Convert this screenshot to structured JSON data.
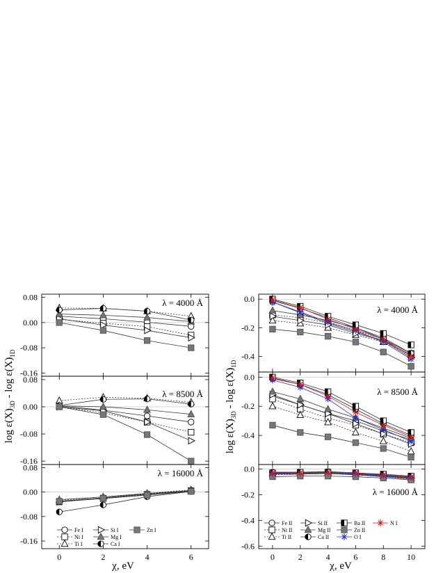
{
  "left_figure": {
    "ylabel": "log ε(X)",
    "ylabel_sub3d": "3D",
    "ylabel_mid": " - log ε(X)",
    "ylabel_sub1d": "1D",
    "xlabel": "χ, eV",
    "legend": [
      "Fe I",
      "Ni I",
      "Ti I",
      "Si I",
      "Mg I",
      "Ca I",
      "Zn I"
    ]
  },
  "right_figure": {
    "ylabel": "log ε(X)",
    "ylabel_sub3d": "3D",
    "ylabel_mid": " - log ε(X)",
    "ylabel_sub1d": "1D",
    "xlabel": "χ, eV",
    "legend": [
      "Fe II",
      "Ni II",
      "Ti II",
      "Si II",
      "Mg II",
      "Ca II",
      "Ba II",
      "Zn II",
      "O I",
      "N I"
    ]
  },
  "chart_data": [
    {
      "type": "line",
      "panel": "left-top",
      "annotation": "λ = 4000 Å",
      "x": [
        0,
        2,
        4,
        6
      ],
      "xlim": [
        -0.8,
        6.8
      ],
      "ylim": [
        -0.17,
        0.09
      ],
      "yticks": [
        0.08,
        0.0,
        -0.08,
        -0.16
      ],
      "ytick_labels": [
        "0.08",
        "0.00",
        "-0.08",
        "-0.16"
      ],
      "show_xticklabels": false,
      "series": [
        {
          "name": "Fe I",
          "marker": "circle",
          "dash": "solid",
          "values": [
            0.02,
            0.012,
            0.001,
            -0.012
          ]
        },
        {
          "name": "Ni I",
          "marker": "square",
          "dash": "dotted",
          "values": [
            0.01,
            -0.002,
            -0.013,
            -0.04
          ]
        },
        {
          "name": "Ti I",
          "marker": "triangle",
          "dash": "dotted",
          "values": [
            0.046,
            0.045,
            0.036,
            0.02
          ]
        },
        {
          "name": "Si I",
          "marker": "triangle-right",
          "dash": "solid",
          "values": [
            0.012,
            -0.008,
            -0.025,
            -0.048
          ]
        },
        {
          "name": "Mg I",
          "marker": "triangle-filled",
          "dash": "solid",
          "values": [
            0.027,
            0.023,
            0.016,
            0.003
          ]
        },
        {
          "name": "Ca I",
          "marker": "circle-half",
          "dash": "solid",
          "values": [
            0.04,
            0.045,
            0.036,
            0.008
          ]
        },
        {
          "name": "Zn I",
          "marker": "square-filled",
          "dash": "solid",
          "values": [
            0.0,
            -0.025,
            -0.057,
            -0.08
          ]
        }
      ]
    },
    {
      "type": "line",
      "panel": "left-middle",
      "annotation": "λ = 8500 Å",
      "x": [
        0,
        2,
        4,
        6
      ],
      "xlim": [
        -0.8,
        6.8
      ],
      "ylim": [
        -0.17,
        0.09
      ],
      "yticks": [
        0.08,
        0.0,
        -0.08,
        -0.16
      ],
      "ytick_labels": [
        "0.08",
        "0.00",
        "-0.08",
        "-0.16"
      ],
      "show_xticklabels": false,
      "series": [
        {
          "name": "Fe I",
          "marker": "circle",
          "dash": "solid",
          "values": [
            0.003,
            -0.01,
            -0.027,
            -0.045
          ]
        },
        {
          "name": "Ni I",
          "marker": "square",
          "dash": "dotted",
          "values": [
            0.0,
            -0.018,
            -0.045,
            -0.075
          ]
        },
        {
          "name": "Ti I",
          "marker": "triangle",
          "dash": "dotted",
          "values": [
            0.018,
            0.028,
            0.025,
            0.013
          ]
        },
        {
          "name": "Si I",
          "marker": "triangle-right",
          "dash": "solid",
          "values": [
            0.0,
            -0.012,
            -0.045,
            -0.1
          ]
        },
        {
          "name": "Mg I",
          "marker": "triangle-filled",
          "dash": "solid",
          "values": [
            0.003,
            0.0,
            -0.009,
            -0.022
          ]
        },
        {
          "name": "Ca I",
          "marker": "circle-half",
          "dash": "solid",
          "values": [
            0.004,
            0.022,
            0.023,
            0.008
          ]
        },
        {
          "name": "Zn I",
          "marker": "square-filled",
          "dash": "solid",
          "values": [
            0.0,
            -0.023,
            -0.082,
            -0.16
          ]
        }
      ]
    },
    {
      "type": "line",
      "panel": "left-bottom",
      "annotation": "λ = 16000 Å",
      "x": [
        0,
        2,
        4,
        6
      ],
      "xlim": [
        -0.8,
        6.8
      ],
      "ylim": [
        -0.185,
        0.09
      ],
      "yticks": [
        0.08,
        0.0,
        -0.08,
        -0.16
      ],
      "ytick_labels": [
        "0.08",
        "0.00",
        "-0.08",
        "-0.16"
      ],
      "xticks": [
        0,
        2,
        4,
        6
      ],
      "xtick_labels": [
        "0",
        "2",
        "4",
        "6"
      ],
      "show_xticklabels": true,
      "series": [
        {
          "name": "Fe I",
          "marker": "circle",
          "dash": "solid",
          "values": [
            -0.03,
            -0.019,
            -0.006,
            0.005
          ]
        },
        {
          "name": "Ni I",
          "marker": "square",
          "dash": "dotted",
          "values": [
            -0.032,
            -0.02,
            -0.008,
            0.004
          ]
        },
        {
          "name": "Ti I",
          "marker": "triangle",
          "dash": "dotted",
          "values": [
            -0.027,
            -0.016,
            -0.004,
            0.007
          ]
        },
        {
          "name": "Si I",
          "marker": "triangle-right",
          "dash": "solid",
          "values": [
            -0.032,
            -0.021,
            -0.009,
            0.003
          ]
        },
        {
          "name": "Mg I",
          "marker": "triangle-filled",
          "dash": "solid",
          "values": [
            -0.025,
            -0.016,
            -0.005,
            0.005
          ]
        },
        {
          "name": "Ca I",
          "marker": "circle-half",
          "dash": "solid",
          "values": [
            -0.065,
            -0.042,
            -0.015,
            0.002
          ]
        },
        {
          "name": "Zn I",
          "marker": "square-filled",
          "dash": "solid",
          "values": [
            -0.03,
            -0.021,
            -0.01,
            0.002
          ]
        }
      ]
    },
    {
      "type": "line",
      "panel": "right-top",
      "annotation": "λ = 4000 Å",
      "x": [
        0,
        2,
        4,
        6,
        8,
        10
      ],
      "xlim": [
        -1.0,
        11.0
      ],
      "ylim": [
        -0.51,
        0.035
      ],
      "yticks": [
        0.0,
        -0.2,
        -0.4
      ],
      "ytick_labels": [
        "0.0",
        "-0.2",
        "-0.4"
      ],
      "show_xticklabels": false,
      "series": [
        {
          "name": "Fe II",
          "marker": "circle",
          "dash": "solid",
          "values": [
            -0.02,
            -0.095,
            -0.17,
            -0.23,
            -0.29,
            -0.39
          ]
        },
        {
          "name": "Ni II",
          "marker": "square",
          "dash": "dotted",
          "values": [
            -0.11,
            -0.13,
            -0.165,
            -0.22,
            -0.28,
            -0.38
          ]
        },
        {
          "name": "Ti II",
          "marker": "triangle",
          "dash": "dotted",
          "values": [
            -0.15,
            -0.17,
            -0.2,
            -0.25,
            -0.3,
            -0.39
          ]
        },
        {
          "name": "Si II",
          "marker": "triangle-right",
          "dash": "solid",
          "values": [
            -0.12,
            -0.15,
            -0.18,
            -0.24,
            -0.29,
            -0.41
          ]
        },
        {
          "name": "Mg II",
          "marker": "triangle-filled",
          "dash": "solid",
          "values": [
            -0.08,
            -0.11,
            -0.15,
            -0.2,
            -0.28,
            -0.38
          ]
        },
        {
          "name": "Ca II",
          "marker": "circle-half",
          "dash": "solid",
          "values": [
            -0.01,
            -0.065,
            -0.13,
            -0.2,
            -0.27,
            -0.38
          ]
        },
        {
          "name": "Ba II",
          "marker": "square-half",
          "dash": "solid",
          "values": [
            0.0,
            -0.05,
            -0.12,
            -0.18,
            -0.24,
            -0.32
          ]
        },
        {
          "name": "Zn II",
          "marker": "square-filled",
          "dash": "solid",
          "values": [
            -0.21,
            -0.23,
            -0.26,
            -0.3,
            -0.37,
            -0.47
          ]
        },
        {
          "name": "O I",
          "marker": "asterisk",
          "dash": "solid",
          "color": "#1a2fe0",
          "values": [
            -0.02,
            -0.09,
            -0.16,
            -0.22,
            -0.3,
            -0.42
          ]
        },
        {
          "name": "N I",
          "marker": "asterisk",
          "dash": "solid",
          "color": "#e01010",
          "values": [
            -0.005,
            -0.06,
            -0.14,
            -0.21,
            -0.28,
            -0.4
          ]
        }
      ]
    },
    {
      "type": "line",
      "panel": "right-middle",
      "annotation": "λ = 8500 Å",
      "x": [
        0,
        2,
        4,
        6,
        8,
        10
      ],
      "xlim": [
        -1.0,
        11.0
      ],
      "ylim": [
        -0.6,
        0.035
      ],
      "yticks": [
        0.0,
        -0.2,
        -0.4
      ],
      "ytick_labels": [
        "0.0",
        "-0.2",
        "-0.4"
      ],
      "show_xticklabels": false,
      "series": [
        {
          "name": "Fe II",
          "marker": "circle",
          "dash": "solid",
          "values": [
            -0.13,
            -0.19,
            -0.25,
            -0.3,
            -0.37,
            -0.43
          ]
        },
        {
          "name": "Ni II",
          "marker": "square",
          "dash": "dotted",
          "values": [
            -0.15,
            -0.22,
            -0.28,
            -0.33,
            -0.39,
            -0.45
          ]
        },
        {
          "name": "Ti II",
          "marker": "triangle",
          "dash": "dotted",
          "values": [
            -0.2,
            -0.26,
            -0.31,
            -0.38,
            -0.44,
            -0.51
          ]
        },
        {
          "name": "Si II",
          "marker": "triangle-right",
          "dash": "solid",
          "values": [
            -0.12,
            -0.19,
            -0.25,
            -0.32,
            -0.39,
            -0.46
          ]
        },
        {
          "name": "Mg II",
          "marker": "triangle-filled",
          "dash": "solid",
          "values": [
            -0.1,
            -0.15,
            -0.22,
            -0.28,
            -0.35,
            -0.42
          ]
        },
        {
          "name": "Ca II",
          "marker": "circle-half",
          "dash": "solid",
          "values": [
            -0.01,
            -0.05,
            -0.12,
            -0.22,
            -0.32,
            -0.4
          ]
        },
        {
          "name": "Ba II",
          "marker": "square-half",
          "dash": "solid",
          "values": [
            0.0,
            -0.04,
            -0.1,
            -0.2,
            -0.3,
            -0.38
          ]
        },
        {
          "name": "Zn II",
          "marker": "square-filled",
          "dash": "solid",
          "values": [
            -0.33,
            -0.38,
            -0.41,
            -0.45,
            -0.49,
            -0.55
          ]
        },
        {
          "name": "O I",
          "marker": "asterisk",
          "dash": "solid",
          "color": "#1a2fe0",
          "values": [
            -0.02,
            -0.07,
            -0.15,
            -0.28,
            -0.36,
            -0.44
          ]
        },
        {
          "name": "N I",
          "marker": "asterisk",
          "dash": "solid",
          "color": "#e01010",
          "values": [
            -0.005,
            -0.05,
            -0.13,
            -0.24,
            -0.33,
            -0.41
          ]
        }
      ]
    },
    {
      "type": "line",
      "panel": "right-bottom",
      "annotation": "λ = 16000 Å",
      "x": [
        0,
        2,
        4,
        6,
        8,
        10
      ],
      "xlim": [
        -1.0,
        11.0
      ],
      "ylim": [
        -0.62,
        0.035
      ],
      "yticks": [
        0.0,
        -0.2,
        -0.4,
        -0.6
      ],
      "ytick_labels": [
        "0.0",
        "-0.2",
        "-0.4",
        "-0.6"
      ],
      "xticks": [
        0,
        2,
        4,
        6,
        8,
        10
      ],
      "xtick_labels": [
        "0",
        "2",
        "4",
        "6",
        "8",
        "10"
      ],
      "show_xticklabels": true,
      "series": [
        {
          "name": "Fe II",
          "marker": "circle",
          "dash": "solid",
          "values": [
            -0.04,
            -0.04,
            -0.035,
            -0.045,
            -0.06,
            -0.075
          ]
        },
        {
          "name": "Ni II",
          "marker": "square",
          "dash": "dotted",
          "values": [
            -0.045,
            -0.04,
            -0.035,
            -0.045,
            -0.06,
            -0.08
          ]
        },
        {
          "name": "Ti II",
          "marker": "triangle",
          "dash": "dotted",
          "values": [
            -0.035,
            -0.03,
            -0.03,
            -0.04,
            -0.055,
            -0.07
          ]
        },
        {
          "name": "Si II",
          "marker": "triangle-right",
          "dash": "solid",
          "values": [
            -0.04,
            -0.035,
            -0.03,
            -0.04,
            -0.055,
            -0.07
          ]
        },
        {
          "name": "Mg II",
          "marker": "triangle-filled",
          "dash": "solid",
          "values": [
            -0.03,
            -0.03,
            -0.025,
            -0.035,
            -0.05,
            -0.065
          ]
        },
        {
          "name": "Ca II",
          "marker": "circle-half",
          "dash": "solid",
          "values": [
            -0.025,
            -0.025,
            -0.02,
            -0.03,
            -0.045,
            -0.06
          ]
        },
        {
          "name": "Ba II",
          "marker": "square-half",
          "dash": "solid",
          "values": [
            -0.03,
            -0.025,
            -0.025,
            -0.03,
            -0.04,
            -0.055
          ]
        },
        {
          "name": "Zn II",
          "marker": "square-filled",
          "dash": "solid",
          "values": [
            -0.06,
            -0.055,
            -0.055,
            -0.06,
            -0.07,
            -0.085
          ]
        },
        {
          "name": "O I",
          "marker": "asterisk",
          "dash": "solid",
          "color": "#1a2fe0",
          "values": [
            -0.035,
            -0.03,
            -0.025,
            -0.035,
            -0.05,
            -0.065
          ]
        },
        {
          "name": "N I",
          "marker": "asterisk",
          "dash": "solid",
          "color": "#e01010",
          "values": [
            -0.03,
            -0.03,
            -0.025,
            -0.03,
            -0.045,
            -0.06
          ]
        }
      ]
    }
  ]
}
